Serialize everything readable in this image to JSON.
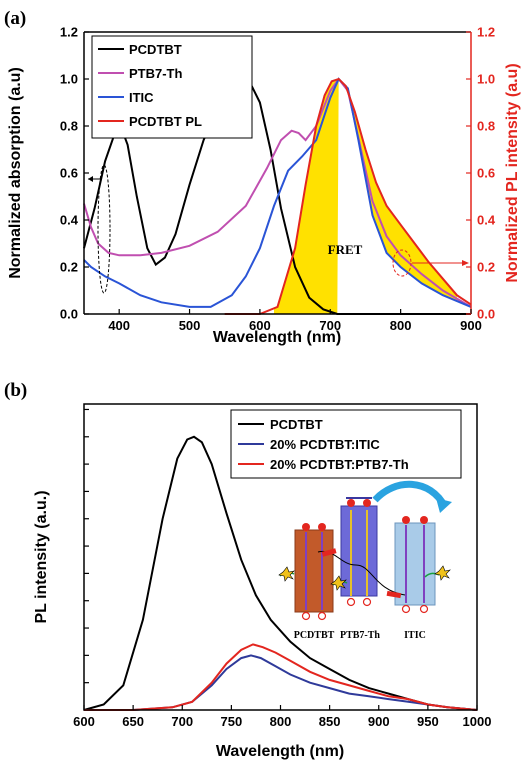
{
  "colors": {
    "black": "#000000",
    "magenta": "#c04fb0",
    "blue": "#2a54d6",
    "red": "#e3261f",
    "navy": "#2f3a9a",
    "fret_fill": "#ffe100"
  },
  "chart_data": [
    {
      "type": "line",
      "panel_label": "(a)",
      "xlabel": "Wavelength (nm)",
      "ylabel": "Normalized absorption (a.u)",
      "y2label": "Normalized PL intensity (a.u)",
      "xlim": [
        350,
        900
      ],
      "ylim": [
        0,
        1.2
      ],
      "y2lim": [
        0,
        1.2
      ],
      "x_ticks": [
        "400",
        "500",
        "600",
        "700",
        "800",
        "900"
      ],
      "y_ticks": [
        "0.0",
        "0.2",
        "0.4",
        "0.6",
        "0.8",
        "1.0",
        "1.2"
      ],
      "y2_ticks": [
        "0.0",
        "0.2",
        "0.4",
        "0.6",
        "0.8",
        "1.0",
        "1.2"
      ],
      "legend_position": "top-left",
      "annotations": [
        "FRET"
      ],
      "series": [
        {
          "name": "PCDTBT",
          "color": "#000000",
          "axis": "left",
          "x": [
            350,
            365,
            380,
            395,
            402,
            412,
            425,
            440,
            452,
            465,
            480,
            500,
            520,
            540,
            560,
            575,
            585,
            600,
            615,
            630,
            650,
            670,
            690,
            710,
            740,
            780,
            820,
            860,
            900
          ],
          "y": [
            0.28,
            0.45,
            0.65,
            0.78,
            0.8,
            0.72,
            0.5,
            0.28,
            0.21,
            0.24,
            0.34,
            0.55,
            0.74,
            0.87,
            0.96,
            1.0,
            0.99,
            0.9,
            0.7,
            0.45,
            0.2,
            0.07,
            0.02,
            0.0,
            0.0,
            0.0,
            0.0,
            0.0,
            0.0
          ]
        },
        {
          "name": "PTB7-Th",
          "color": "#c04fb0",
          "axis": "left",
          "x": [
            350,
            360,
            370,
            385,
            400,
            430,
            460,
            500,
            540,
            580,
            610,
            630,
            645,
            655,
            665,
            680,
            700,
            712,
            725,
            740,
            760,
            780,
            800,
            830,
            860,
            900
          ],
          "y": [
            0.47,
            0.37,
            0.3,
            0.26,
            0.25,
            0.25,
            0.26,
            0.29,
            0.35,
            0.46,
            0.62,
            0.74,
            0.78,
            0.77,
            0.74,
            0.8,
            0.95,
            1.0,
            0.95,
            0.75,
            0.48,
            0.33,
            0.25,
            0.17,
            0.1,
            0.03
          ]
        },
        {
          "name": "ITIC",
          "color": "#2a54d6",
          "axis": "left",
          "x": [
            350,
            360,
            380,
            400,
            430,
            460,
            500,
            530,
            560,
            580,
            600,
            620,
            640,
            660,
            680,
            700,
            712,
            725,
            740,
            760,
            780,
            800,
            830,
            860,
            900
          ],
          "y": [
            0.23,
            0.2,
            0.16,
            0.13,
            0.08,
            0.05,
            0.03,
            0.03,
            0.08,
            0.16,
            0.28,
            0.46,
            0.61,
            0.67,
            0.74,
            0.92,
            1.0,
            0.96,
            0.74,
            0.42,
            0.26,
            0.2,
            0.13,
            0.08,
            0.03
          ]
        },
        {
          "name": "PCDTBT PL",
          "color": "#e3261f",
          "axis": "right",
          "x": [
            550,
            600,
            625,
            650,
            665,
            680,
            692,
            702,
            712,
            722,
            735,
            750,
            765,
            780,
            800,
            820,
            840,
            860,
            880,
            900
          ],
          "y": [
            0.0,
            0.0,
            0.03,
            0.28,
            0.55,
            0.8,
            0.93,
            0.99,
            1.0,
            0.97,
            0.86,
            0.7,
            0.56,
            0.46,
            0.38,
            0.3,
            0.22,
            0.15,
            0.08,
            0.04
          ]
        }
      ]
    },
    {
      "type": "line",
      "panel_label": "(b)",
      "xlabel": "Wavelength (nm)",
      "ylabel": "PL intensity (a.u.)",
      "xlim": [
        600,
        1000
      ],
      "ylim": [
        0,
        1.12
      ],
      "x_ticks": [
        "600",
        "650",
        "700",
        "750",
        "800",
        "850",
        "900",
        "950",
        "1000"
      ],
      "legend_position": "top-right",
      "inset_labels": [
        "PCDTBT",
        "PTB7-Th",
        "ITIC"
      ],
      "series": [
        {
          "name": "PCDTBT",
          "color": "#000000",
          "x": [
            600,
            620,
            640,
            660,
            680,
            695,
            705,
            712,
            720,
            730,
            745,
            760,
            775,
            790,
            810,
            830,
            850,
            870,
            890,
            910,
            930,
            950,
            970,
            1000
          ],
          "y": [
            0.0,
            0.02,
            0.09,
            0.33,
            0.7,
            0.92,
            0.99,
            1.0,
            0.98,
            0.9,
            0.72,
            0.55,
            0.42,
            0.33,
            0.25,
            0.19,
            0.15,
            0.11,
            0.08,
            0.06,
            0.04,
            0.02,
            0.01,
            0.0
          ]
        },
        {
          "name": "20% PCDTBT:ITIC",
          "color": "#2f3a9a",
          "x": [
            600,
            650,
            690,
            710,
            730,
            745,
            760,
            770,
            780,
            795,
            810,
            830,
            850,
            870,
            890,
            910,
            930,
            950,
            970,
            1000
          ],
          "y": [
            0.0,
            0.0,
            0.01,
            0.03,
            0.09,
            0.15,
            0.19,
            0.2,
            0.19,
            0.16,
            0.13,
            0.1,
            0.08,
            0.06,
            0.05,
            0.04,
            0.03,
            0.02,
            0.01,
            0.0
          ]
        },
        {
          "name": "20% PCDTBT:PTB7-Th",
          "color": "#e3261f",
          "x": [
            600,
            650,
            690,
            710,
            730,
            745,
            760,
            772,
            782,
            795,
            810,
            830,
            850,
            870,
            890,
            910,
            930,
            950,
            970,
            1000
          ],
          "y": [
            0.0,
            0.0,
            0.01,
            0.03,
            0.1,
            0.17,
            0.22,
            0.24,
            0.23,
            0.21,
            0.18,
            0.14,
            0.11,
            0.09,
            0.07,
            0.05,
            0.04,
            0.02,
            0.01,
            0.0
          ]
        }
      ]
    }
  ]
}
